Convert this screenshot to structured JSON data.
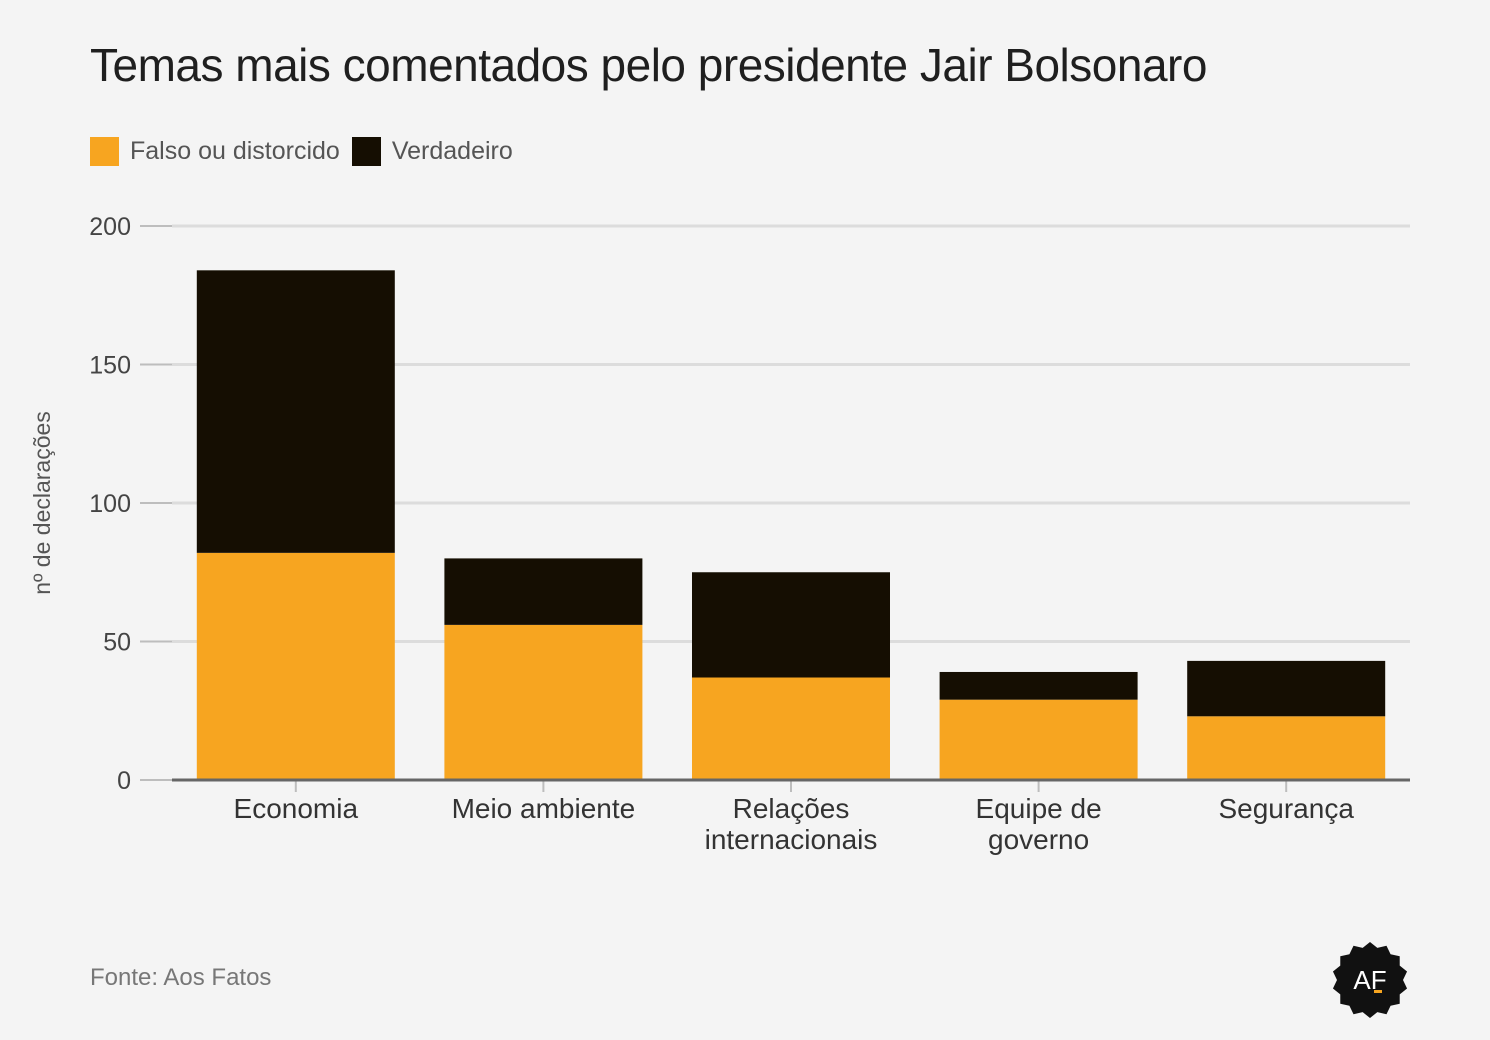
{
  "title": "Temas mais comentados pelo presidente Jair Bolsonaro",
  "source": "Fonte: Aos Fatos",
  "logo": "AF",
  "colors": {
    "falso": "#f7a520",
    "verdadeiro": "#150e02",
    "grid": "#dcdcdc",
    "axis": "#666666",
    "background": "#f4f4f4"
  },
  "chart_data": {
    "type": "bar",
    "stacked": true,
    "title": "Temas mais comentados pelo presidente Jair Bolsonaro",
    "ylabel": "nº de declarações",
    "xlabel": "",
    "ylim": [
      0,
      200
    ],
    "yticks": [
      0,
      50,
      100,
      150,
      200
    ],
    "grid": true,
    "legend_position": "top-left",
    "categories": [
      [
        "Economia"
      ],
      [
        "Meio ambiente"
      ],
      [
        "Relações",
        "internacionais"
      ],
      [
        "Equipe de",
        "governo"
      ],
      [
        "Segurança"
      ]
    ],
    "series": [
      {
        "name": "Falso ou distorcido",
        "color": "#f7a520",
        "values": [
          82,
          56,
          37,
          29,
          23
        ]
      },
      {
        "name": "Verdadeiro",
        "color": "#150e02",
        "values": [
          102,
          24,
          38,
          10,
          20
        ]
      }
    ]
  }
}
